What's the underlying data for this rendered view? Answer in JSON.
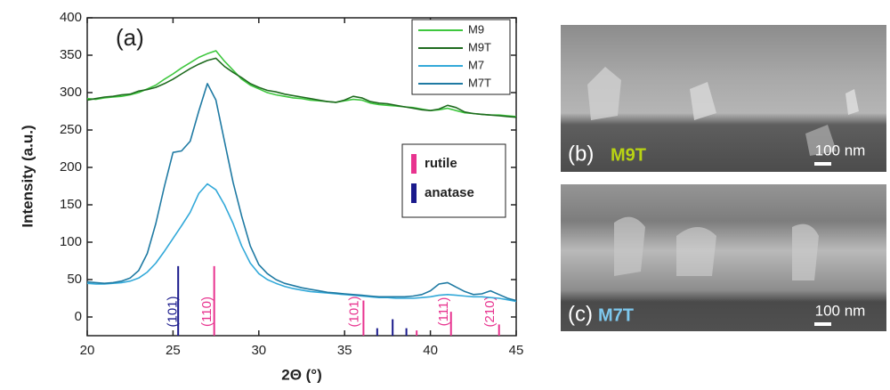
{
  "chart_data": {
    "type": "line",
    "panel_label": "(a)",
    "x_label": "2Θ (°)",
    "y_label": "Intensity (a.u.)",
    "xlim": [
      20,
      45
    ],
    "xticks": [
      20,
      25,
      30,
      35,
      40,
      45
    ],
    "ylim": [
      -25,
      400
    ],
    "yticks": [
      0,
      50,
      100,
      150,
      200,
      250,
      300,
      350,
      400
    ],
    "x": [
      20,
      20.5,
      21,
      21.5,
      22,
      22.5,
      23,
      23.5,
      24,
      24.5,
      25,
      25.5,
      26,
      26.5,
      27,
      27.5,
      28,
      28.5,
      29,
      29.5,
      30,
      30.5,
      31,
      31.5,
      32,
      32.5,
      33,
      33.5,
      34,
      34.5,
      35,
      35.5,
      36,
      36.5,
      37,
      37.5,
      38,
      38.5,
      39,
      39.5,
      40,
      40.5,
      41,
      41.5,
      42,
      42.5,
      43,
      43.5,
      44,
      44.5,
      45
    ],
    "series": [
      {
        "name": "M9",
        "color": "#3ec73e",
        "values": [
          292,
          291,
          293,
          294,
          295,
          297,
          300,
          305,
          310,
          318,
          325,
          333,
          340,
          347,
          352,
          356,
          342,
          330,
          318,
          310,
          305,
          300,
          297,
          295,
          293,
          292,
          290,
          289,
          288,
          287,
          289,
          291,
          290,
          286,
          284,
          283,
          282,
          281,
          280,
          278,
          276,
          277,
          279,
          276,
          273,
          272,
          271,
          270,
          270,
          269,
          268
        ]
      },
      {
        "name": "M9T",
        "color": "#1f6b1f",
        "values": [
          290,
          292,
          294,
          295,
          297,
          298,
          302,
          304,
          307,
          312,
          318,
          325,
          332,
          338,
          343,
          346,
          335,
          327,
          320,
          312,
          307,
          303,
          301,
          298,
          296,
          294,
          292,
          290,
          288,
          287,
          290,
          295,
          293,
          288,
          286,
          285,
          283,
          281,
          279,
          277,
          276,
          278,
          283,
          280,
          274,
          272,
          271,
          270,
          269,
          268,
          267
        ]
      },
      {
        "name": "M7",
        "color": "#33a9d9",
        "values": [
          45,
          44,
          44,
          45,
          46,
          48,
          52,
          60,
          72,
          88,
          105,
          122,
          140,
          165,
          178,
          170,
          150,
          125,
          95,
          72,
          58,
          50,
          45,
          41,
          38,
          36,
          34,
          33,
          32,
          31,
          30,
          29,
          28,
          27,
          26,
          26,
          25,
          25,
          25,
          26,
          27,
          29,
          30,
          29,
          28,
          27,
          27,
          26,
          25,
          23,
          21
        ]
      },
      {
        "name": "M7T",
        "color": "#1f7aa3",
        "values": [
          47,
          46,
          45,
          46,
          48,
          52,
          62,
          85,
          125,
          175,
          220,
          222,
          235,
          275,
          312,
          290,
          235,
          180,
          135,
          95,
          70,
          58,
          50,
          45,
          42,
          39,
          37,
          35,
          33,
          32,
          31,
          30,
          29,
          28,
          27,
          27,
          27,
          27,
          28,
          30,
          35,
          44,
          46,
          40,
          34,
          30,
          31,
          35,
          30,
          25,
          22
        ]
      }
    ],
    "references": [
      {
        "name": "rutile",
        "color": "#e8338f",
        "x": [
          27.4,
          36.1,
          39.2,
          41.2,
          44.0
        ],
        "values": [
          68,
          22,
          -18,
          7,
          -10
        ]
      },
      {
        "name": "anatase",
        "color": "#1a1a8c",
        "x": [
          25.3,
          36.9,
          37.8,
          38.6
        ],
        "values": [
          68,
          -15,
          -3,
          -15
        ]
      }
    ],
    "peak_labels": [
      {
        "text": "(101)",
        "x": 25.0,
        "color": "#1a1a8c"
      },
      {
        "text": "(110)",
        "x": 27.0,
        "color": "#e8338f"
      },
      {
        "text": "(101)",
        "x": 35.6,
        "color": "#e8338f"
      },
      {
        "text": "(111)",
        "x": 40.8,
        "color": "#e8338f"
      },
      {
        "text": "(210)",
        "x": 43.5,
        "color": "#e8338f"
      }
    ]
  },
  "images": [
    {
      "label": "(b)",
      "sample": "M9T",
      "scale": "100 nm"
    },
    {
      "label": "(c)",
      "sample": "M7T",
      "scale": "100 nm"
    }
  ]
}
